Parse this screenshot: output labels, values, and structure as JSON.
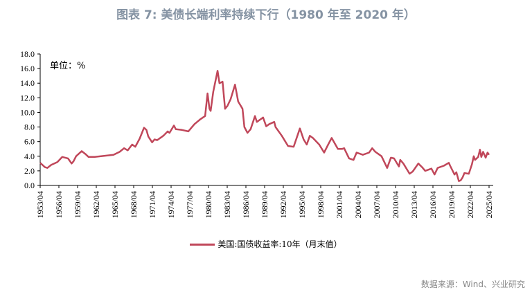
{
  "title": "图表 7:  美债长端利率持续下行（1980 年至 2020 年）",
  "source": "数据来源：Wind、兴业研究",
  "chart_data": {
    "type": "line",
    "title": "图表 7:  美债长端利率持续下行（1980 年至 2020 年）",
    "unit_label": "单位：%",
    "ylim": [
      0,
      18
    ],
    "yticks": [
      "0.0",
      "2.0",
      "4.0",
      "6.0",
      "8.0",
      "10.0",
      "12.0",
      "14.0",
      "16.0",
      "18.0"
    ],
    "xlim": [
      1953.25,
      2025.25
    ],
    "xticks": [
      "1953/04",
      "1956/04",
      "1959/04",
      "1962/04",
      "1965/04",
      "1968/04",
      "1971/04",
      "1974/04",
      "1977/04",
      "1980/04",
      "1983/04",
      "1986/04",
      "1989/04",
      "1992/04",
      "1995/04",
      "1998/04",
      "2001/04",
      "2004/04",
      "2007/04",
      "2010/04",
      "2013/04",
      "2016/04",
      "2019/04",
      "2022/04",
      "2025/04"
    ],
    "grid": false,
    "legend_position": "bottom",
    "color": "#c0475a",
    "series": [
      {
        "name": "美国:国债收益率:10年（月末值）",
        "x": [
          1953.25,
          1953.5,
          1954,
          1954.4,
          1955,
          1956,
          1956.8,
          1957.7,
          1958.3,
          1958.6,
          1959,
          1959.9,
          1960.5,
          1961,
          1962,
          1963,
          1964,
          1965,
          1966,
          1966.7,
          1967.3,
          1968,
          1968.5,
          1969.2,
          1969.9,
          1970.3,
          1970.6,
          1971.2,
          1971.6,
          1972,
          1973,
          1973.7,
          1974,
          1974.7,
          1975,
          1976,
          1977,
          1978,
          1979,
          1979.7,
          1980.1,
          1980.4,
          1980.6,
          1981,
          1981.7,
          1982,
          1982.5,
          1982.9,
          1983.3,
          1983.8,
          1984.5,
          1985,
          1985.7,
          1986,
          1986.5,
          1987,
          1987.7,
          1988,
          1988.5,
          1989,
          1989.5,
          1990,
          1990.8,
          1991,
          1992,
          1993,
          1993.9,
          1994.9,
          1995.5,
          1996,
          1996.5,
          1997,
          1998,
          1998.8,
          1999.5,
          2000,
          2001,
          2001.7,
          2002,
          2002.8,
          2003.5,
          2004,
          2005,
          2006,
          2006.5,
          2007,
          2008,
          2008.9,
          2009.5,
          2010,
          2010.8,
          2011,
          2011.5,
          2012.5,
          2013,
          2013.9,
          2014.5,
          2015,
          2016,
          2016.5,
          2017,
          2018,
          2018.8,
          2019,
          2019.7,
          2020,
          2020.4,
          2020.7,
          2021,
          2021.3,
          2022,
          2022.5,
          2022.8,
          2023,
          2023.5,
          2023.8,
          2024,
          2024.3,
          2024.7,
          2025,
          2025.25
        ],
        "y": [
          3.1,
          2.9,
          2.5,
          2.4,
          2.8,
          3.2,
          3.9,
          3.7,
          3.0,
          3.3,
          4.0,
          4.7,
          4.3,
          3.9,
          3.9,
          4.0,
          4.1,
          4.2,
          4.6,
          5.1,
          4.8,
          5.6,
          5.3,
          6.4,
          7.9,
          7.6,
          6.7,
          5.9,
          6.3,
          6.2,
          6.8,
          7.4,
          7.2,
          8.2,
          7.7,
          7.6,
          7.4,
          8.4,
          9.1,
          9.5,
          12.6,
          10.5,
          10.2,
          12.8,
          15.7,
          14.0,
          14.2,
          10.5,
          10.9,
          11.8,
          13.8,
          11.5,
          10.5,
          8.0,
          7.2,
          7.7,
          9.5,
          8.7,
          9.0,
          9.3,
          8.1,
          8.4,
          8.7,
          8.0,
          6.8,
          5.4,
          5.3,
          7.8,
          6.3,
          5.6,
          6.8,
          6.5,
          5.6,
          4.5,
          5.7,
          6.5,
          5.0,
          5.0,
          5.1,
          3.7,
          3.5,
          4.5,
          4.2,
          4.5,
          5.1,
          4.6,
          4.0,
          2.4,
          3.8,
          3.7,
          2.6,
          3.5,
          3.0,
          1.6,
          1.9,
          3.0,
          2.5,
          2.0,
          2.3,
          1.5,
          2.4,
          2.7,
          3.1,
          2.7,
          1.5,
          1.8,
          0.6,
          0.7,
          1.1,
          1.7,
          1.6,
          2.9,
          4.0,
          3.5,
          3.9,
          4.9,
          3.9,
          4.6,
          3.8,
          4.5,
          4.2
        ]
      }
    ]
  }
}
